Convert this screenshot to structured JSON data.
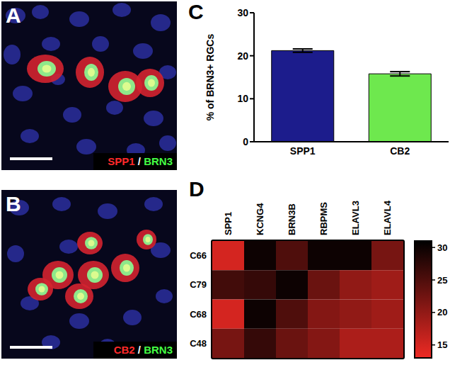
{
  "chart_data": [
    {
      "type": "image",
      "panel": "A",
      "channels": [
        {
          "name": "SPP1",
          "color": "#ff2a2a"
        },
        {
          "name": "BRN3",
          "color": "#44ff44"
        }
      ],
      "separator": "/"
    },
    {
      "type": "image",
      "panel": "B",
      "channels": [
        {
          "name": "CB2",
          "color": "#ff2a2a"
        },
        {
          "name": "BRN3",
          "color": "#44ff44"
        }
      ],
      "separator": "/"
    },
    {
      "type": "bar",
      "panel": "C",
      "ylabel": "% of BRN3+ RGCs",
      "categories": [
        "SPP1",
        "CB2"
      ],
      "values": [
        21.2,
        15.8
      ],
      "errors": [
        0.4,
        0.5
      ],
      "colors": [
        "#1c1c8c",
        "#6ee84e"
      ],
      "ylim": [
        0,
        30
      ],
      "yticks": [
        0,
        10,
        20,
        30
      ]
    },
    {
      "type": "heatmap",
      "panel": "D",
      "categories": [
        "SPP1",
        "KCNG4",
        "BRN3B",
        "RBPMS",
        "ELAVL3",
        "ELAVL4"
      ],
      "rows": [
        "C66",
        "C79",
        "C68",
        "C48"
      ],
      "values": [
        [
          15,
          30,
          25,
          30,
          30,
          22
        ],
        [
          26,
          27,
          30,
          23,
          20,
          19
        ],
        [
          15,
          30,
          25,
          21,
          20,
          19
        ],
        [
          22,
          27,
          23,
          21,
          18,
          18
        ]
      ],
      "colorbar": {
        "range": [
          13,
          31
        ],
        "ticks": [
          15,
          20,
          25,
          30
        ],
        "colors": [
          "#ee2a24",
          "#000000"
        ]
      }
    }
  ]
}
